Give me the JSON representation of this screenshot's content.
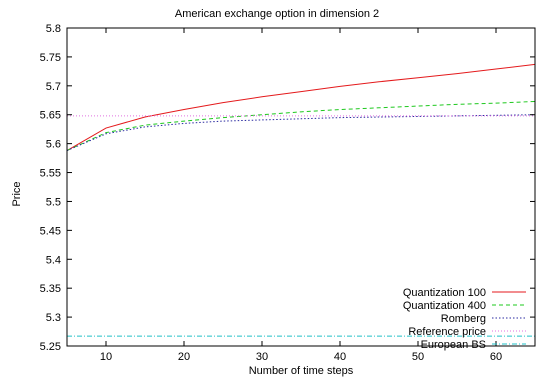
{
  "chart_data": {
    "type": "line",
    "title": "American exchange option in dimension 2",
    "xlabel": "Number of time steps",
    "ylabel": "Price",
    "xlim": [
      5,
      65
    ],
    "ylim": [
      5.25,
      5.8
    ],
    "xticks": [
      10,
      20,
      30,
      40,
      50,
      60
    ],
    "xtick_labels": [
      "10",
      "20",
      "30",
      "40",
      "50",
      "60"
    ],
    "yticks": [
      5.25,
      5.3,
      5.35,
      5.4,
      5.45,
      5.5,
      5.55,
      5.6,
      5.65,
      5.7,
      5.75,
      5.8
    ],
    "ytick_labels": [
      "5.25",
      "5.3",
      "5.35",
      "5.4",
      "5.45",
      "5.5",
      "5.55",
      "5.6",
      "5.65",
      "5.7",
      "5.75",
      "5.8"
    ],
    "grid": false,
    "legend_position": "bottom-right",
    "series": [
      {
        "name": "Quantization 100",
        "color": "#e41a1c",
        "dash": "solid",
        "x": [
          5,
          10,
          15,
          20,
          25,
          30,
          35,
          40,
          45,
          50,
          55,
          60,
          65
        ],
        "y": [
          5.588,
          5.627,
          5.646,
          5.659,
          5.671,
          5.681,
          5.69,
          5.699,
          5.707,
          5.714,
          5.721,
          5.729,
          5.737
        ]
      },
      {
        "name": "Quantization 400",
        "color": "#1ec81e",
        "dash": "dashed",
        "x": [
          5,
          10,
          15,
          20,
          25,
          30,
          35,
          40,
          45,
          50,
          55,
          60,
          65
        ],
        "y": [
          5.588,
          5.619,
          5.632,
          5.639,
          5.645,
          5.65,
          5.655,
          5.659,
          5.662,
          5.665,
          5.668,
          5.67,
          5.673
        ]
      },
      {
        "name": "Romberg",
        "color": "#2a2aa0",
        "dash": "dotted",
        "x": [
          5,
          10,
          15,
          20,
          25,
          30,
          35,
          40,
          45,
          50,
          55,
          60,
          65
        ],
        "y": [
          5.588,
          5.617,
          5.629,
          5.635,
          5.639,
          5.641,
          5.643,
          5.645,
          5.646,
          5.647,
          5.648,
          5.649,
          5.65
        ]
      },
      {
        "name": "Reference price",
        "color": "#e070e0",
        "dash": "dotted-fine",
        "x": [
          5,
          65
        ],
        "y": [
          5.648,
          5.648
        ]
      },
      {
        "name": "European BS",
        "color": "#20c0c8",
        "dash": "dashdot",
        "x": [
          5,
          65
        ],
        "y": [
          5.267,
          5.267
        ]
      }
    ]
  }
}
